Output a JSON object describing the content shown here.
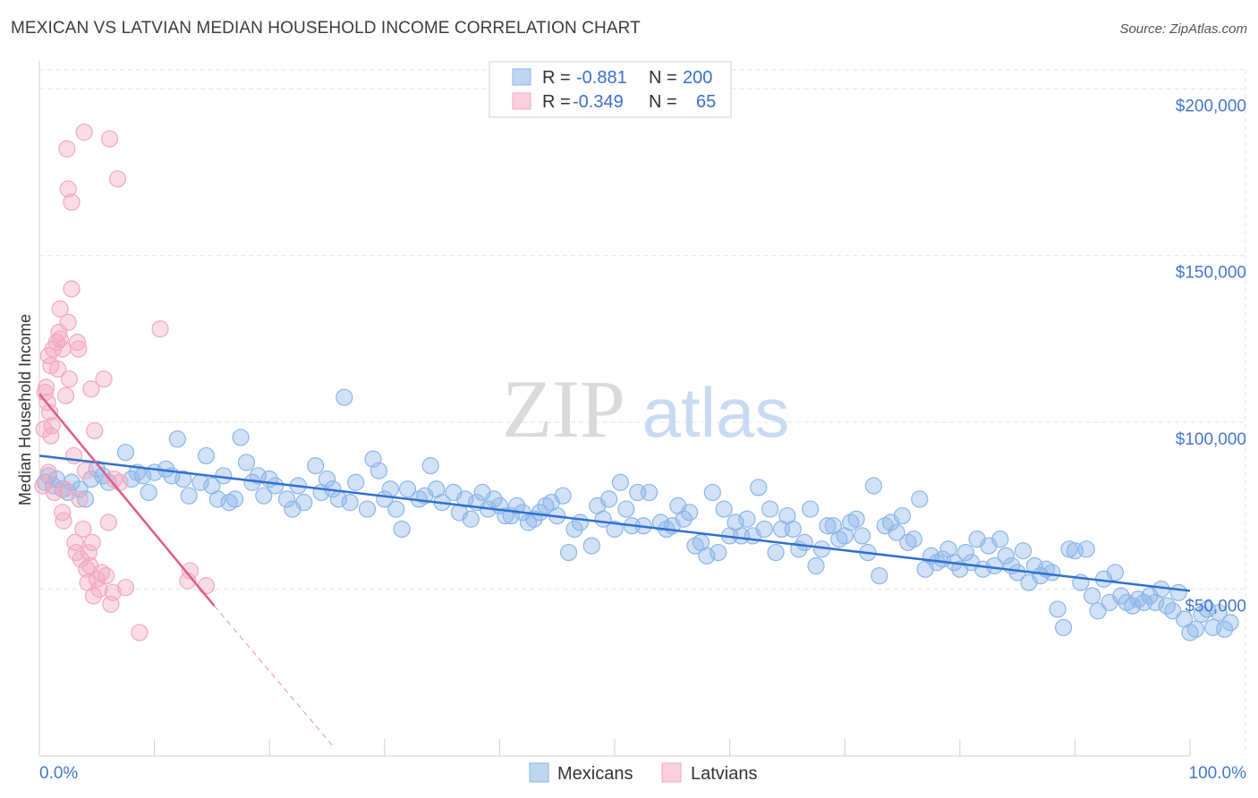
{
  "header": {
    "title": "MEXICAN VS LATVIAN MEDIAN HOUSEHOLD INCOME CORRELATION CHART",
    "source": "Source: ZipAtlas.com"
  },
  "watermark": {
    "zip": "ZIP",
    "atlas": "atlas"
  },
  "legend": {
    "rows": [
      {
        "r_label": "R =",
        "r_value": "-0.881",
        "n_label": "N =",
        "n_value": "200",
        "color": "#8bb5e8"
      },
      {
        "r_label": "R =",
        "r_value": "-0.349",
        "n_label": "N =",
        "n_value": "65",
        "color": "#f2a7bf"
      }
    ]
  },
  "bottom_legend": [
    "Mexicans",
    "Latvians"
  ],
  "chart_data": {
    "type": "scatter",
    "title": "MEXICAN VS LATVIAN MEDIAN HOUSEHOLD INCOME CORRELATION CHART",
    "xlabel": "",
    "ylabel": "Median Household Income",
    "xlim": [
      0,
      100
    ],
    "ylim": [
      0,
      210000
    ],
    "x_tick_labels": [
      "0.0%",
      "100.0%"
    ],
    "y_ticks": [
      50000,
      100000,
      150000,
      200000
    ],
    "y_tick_labels": [
      "$50,000",
      "$100,000",
      "$150,000",
      "$200,000"
    ],
    "grid": true,
    "legend_position": "top-center",
    "series": [
      {
        "name": "Mexicans",
        "color": "#8bb5e8",
        "line_color": "#2f6fd1",
        "r": -0.881,
        "n": 200,
        "trend": {
          "x": [
            0,
            100
          ],
          "y": [
            90000,
            49500
          ]
        },
        "points": [
          [
            0.5,
            82000
          ],
          [
            0.8,
            84000
          ],
          [
            1.2,
            81000
          ],
          [
            1.5,
            83000
          ],
          [
            2.0,
            80000
          ],
          [
            2.5,
            79000
          ],
          [
            2.8,
            82000
          ],
          [
            3.5,
            80000
          ],
          [
            4.0,
            77000
          ],
          [
            4.5,
            83000
          ],
          [
            5.0,
            86000
          ],
          [
            5.5,
            84000
          ],
          [
            6.0,
            82000
          ],
          [
            7.5,
            91000
          ],
          [
            8.0,
            83000
          ],
          [
            8.5,
            85000
          ],
          [
            9.0,
            84000
          ],
          [
            9.5,
            79000
          ],
          [
            10.0,
            85000
          ],
          [
            11.0,
            86000
          ],
          [
            11.5,
            84000
          ],
          [
            12.0,
            95000
          ],
          [
            12.5,
            83000
          ],
          [
            13.0,
            78000
          ],
          [
            14.0,
            82000
          ],
          [
            14.5,
            90000
          ],
          [
            15.0,
            81000
          ],
          [
            15.5,
            77000
          ],
          [
            16.0,
            84000
          ],
          [
            16.5,
            76000
          ],
          [
            17.0,
            77000
          ],
          [
            17.5,
            95500
          ],
          [
            18.0,
            88000
          ],
          [
            18.5,
            82000
          ],
          [
            19.0,
            84000
          ],
          [
            19.5,
            78000
          ],
          [
            20.0,
            83000
          ],
          [
            20.5,
            81000
          ],
          [
            21.5,
            77000
          ],
          [
            22.0,
            74000
          ],
          [
            22.5,
            81000
          ],
          [
            23.0,
            76000
          ],
          [
            24.0,
            87000
          ],
          [
            24.5,
            79000
          ],
          [
            25.0,
            83000
          ],
          [
            25.5,
            80000
          ],
          [
            26.0,
            77000
          ],
          [
            26.5,
            107500
          ],
          [
            27.0,
            76000
          ],
          [
            27.5,
            82000
          ],
          [
            28.5,
            74000
          ],
          [
            29.0,
            89000
          ],
          [
            29.5,
            85500
          ],
          [
            30.0,
            77000
          ],
          [
            30.5,
            80000
          ],
          [
            31.0,
            74000
          ],
          [
            31.5,
            68000
          ],
          [
            32.0,
            80000
          ],
          [
            33.0,
            77000
          ],
          [
            33.5,
            78000
          ],
          [
            34.0,
            87000
          ],
          [
            34.5,
            80000
          ],
          [
            35.0,
            76000
          ],
          [
            36.0,
            79000
          ],
          [
            36.5,
            73000
          ],
          [
            37.0,
            77000
          ],
          [
            37.5,
            71000
          ],
          [
            38.0,
            76000
          ],
          [
            38.5,
            79000
          ],
          [
            39.0,
            74000
          ],
          [
            39.5,
            77000
          ],
          [
            40.0,
            75000
          ],
          [
            40.5,
            72000
          ],
          [
            41.0,
            72000
          ],
          [
            41.5,
            75000
          ],
          [
            42.0,
            73000
          ],
          [
            42.5,
            70000
          ],
          [
            43.0,
            71000
          ],
          [
            43.5,
            73000
          ],
          [
            44.0,
            75000
          ],
          [
            44.5,
            76000
          ],
          [
            45.0,
            72000
          ],
          [
            45.5,
            78000
          ],
          [
            46.0,
            61000
          ],
          [
            46.5,
            68000
          ],
          [
            47.0,
            70000
          ],
          [
            48.0,
            63000
          ],
          [
            48.5,
            75000
          ],
          [
            49.0,
            71000
          ],
          [
            49.5,
            77000
          ],
          [
            50.0,
            68000
          ],
          [
            50.5,
            82000
          ],
          [
            51.0,
            74000
          ],
          [
            51.5,
            69000
          ],
          [
            52.0,
            79000
          ],
          [
            52.5,
            69000
          ],
          [
            53.0,
            79000
          ],
          [
            54.0,
            70000
          ],
          [
            54.5,
            68000
          ],
          [
            55.0,
            69000
          ],
          [
            55.5,
            75000
          ],
          [
            56.0,
            71000
          ],
          [
            56.5,
            73000
          ],
          [
            57.0,
            63000
          ],
          [
            57.5,
            64000
          ],
          [
            58.0,
            60000
          ],
          [
            58.5,
            79000
          ],
          [
            59.0,
            61000
          ],
          [
            59.5,
            74000
          ],
          [
            60.0,
            66000
          ],
          [
            60.5,
            70000
          ],
          [
            61.0,
            66000
          ],
          [
            61.5,
            71000
          ],
          [
            62.0,
            66000
          ],
          [
            62.5,
            80500
          ],
          [
            63.0,
            68000
          ],
          [
            63.5,
            74000
          ],
          [
            64.0,
            61000
          ],
          [
            64.5,
            68000
          ],
          [
            65.0,
            72000
          ],
          [
            65.5,
            68000
          ],
          [
            66.0,
            62000
          ],
          [
            66.5,
            64000
          ],
          [
            67.0,
            74000
          ],
          [
            67.5,
            57000
          ],
          [
            68.0,
            62000
          ],
          [
            68.5,
            69000
          ],
          [
            69.0,
            69000
          ],
          [
            69.5,
            65000
          ],
          [
            70.0,
            66000
          ],
          [
            70.5,
            70000
          ],
          [
            71.0,
            71000
          ],
          [
            71.5,
            66000
          ],
          [
            72.0,
            61000
          ],
          [
            72.5,
            81000
          ],
          [
            73.0,
            54000
          ],
          [
            73.5,
            69000
          ],
          [
            74.0,
            70000
          ],
          [
            74.5,
            67000
          ],
          [
            75.0,
            72000
          ],
          [
            75.5,
            64000
          ],
          [
            76.0,
            65000
          ],
          [
            76.5,
            77000
          ],
          [
            77.0,
            56000
          ],
          [
            77.5,
            60000
          ],
          [
            78.0,
            58000
          ],
          [
            78.5,
            59000
          ],
          [
            79.0,
            62000
          ],
          [
            79.5,
            58000
          ],
          [
            80.0,
            56000
          ],
          [
            80.5,
            61000
          ],
          [
            81.0,
            58000
          ],
          [
            81.5,
            65000
          ],
          [
            82.0,
            56000
          ],
          [
            82.5,
            63000
          ],
          [
            83.0,
            57000
          ],
          [
            83.5,
            65000
          ],
          [
            84.0,
            60000
          ],
          [
            84.5,
            57000
          ],
          [
            85.0,
            55000
          ],
          [
            85.5,
            61500
          ],
          [
            86.0,
            52000
          ],
          [
            86.5,
            57000
          ],
          [
            87.0,
            54000
          ],
          [
            87.5,
            56000
          ],
          [
            88.0,
            55000
          ],
          [
            88.5,
            44000
          ],
          [
            89.0,
            38500
          ],
          [
            89.5,
            62000
          ],
          [
            90.0,
            61500
          ],
          [
            90.5,
            52000
          ],
          [
            91.0,
            62000
          ],
          [
            91.5,
            48000
          ],
          [
            92.0,
            43500
          ],
          [
            92.5,
            53000
          ],
          [
            93.0,
            46000
          ],
          [
            93.5,
            55000
          ],
          [
            94.0,
            48000
          ],
          [
            94.5,
            46000
          ],
          [
            95.0,
            45000
          ],
          [
            95.5,
            47000
          ],
          [
            96.0,
            46000
          ],
          [
            96.5,
            48000
          ],
          [
            97.0,
            46000
          ],
          [
            97.5,
            50000
          ],
          [
            98.0,
            45000
          ],
          [
            98.5,
            43500
          ],
          [
            99.0,
            49000
          ],
          [
            99.5,
            41000
          ],
          [
            100.0,
            37000
          ],
          [
            100.5,
            38000
          ],
          [
            101.0,
            42500
          ],
          [
            101.5,
            44000
          ],
          [
            102.0,
            38500
          ],
          [
            102.5,
            43000
          ],
          [
            103.0,
            38000
          ],
          [
            103.5,
            40000
          ]
        ]
      },
      {
        "name": "Latvians",
        "color": "#f2a7bf",
        "line_color": "#e05a8a",
        "r": -0.349,
        "n": 65,
        "trend": {
          "x": [
            0,
            15.2
          ],
          "y": [
            108500,
            45000
          ]
        },
        "trend_dashed": {
          "x": [
            15.2,
            25.5
          ],
          "y": [
            45000,
            3000
          ]
        },
        "points": [
          [
            0.3,
            81000
          ],
          [
            0.4,
            98000
          ],
          [
            0.5,
            109000
          ],
          [
            0.6,
            110500
          ],
          [
            0.7,
            106000
          ],
          [
            0.8,
            120000
          ],
          [
            0.8,
            85000
          ],
          [
            0.9,
            103000
          ],
          [
            1.0,
            117000
          ],
          [
            1.0,
            96000
          ],
          [
            1.1,
            99000
          ],
          [
            1.2,
            122000
          ],
          [
            1.3,
            79000
          ],
          [
            1.5,
            124000
          ],
          [
            1.6,
            116000
          ],
          [
            1.7,
            127000
          ],
          [
            1.8,
            134000
          ],
          [
            1.8,
            125000
          ],
          [
            2.0,
            122000
          ],
          [
            2.0,
            73000
          ],
          [
            2.1,
            70500
          ],
          [
            2.2,
            80000
          ],
          [
            2.3,
            108000
          ],
          [
            2.4,
            182000
          ],
          [
            2.5,
            170000
          ],
          [
            2.5,
            130000
          ],
          [
            2.6,
            113000
          ],
          [
            2.8,
            166000
          ],
          [
            2.8,
            140000
          ],
          [
            3.0,
            90000
          ],
          [
            3.1,
            64000
          ],
          [
            3.2,
            61000
          ],
          [
            3.3,
            124000
          ],
          [
            3.4,
            122000
          ],
          [
            3.5,
            77000
          ],
          [
            3.6,
            59000
          ],
          [
            3.8,
            68000
          ],
          [
            3.9,
            187000
          ],
          [
            4.0,
            85500
          ],
          [
            4.1,
            56000
          ],
          [
            4.2,
            52000
          ],
          [
            4.3,
            61000
          ],
          [
            4.4,
            57000
          ],
          [
            4.5,
            110000
          ],
          [
            4.6,
            64000
          ],
          [
            4.7,
            48000
          ],
          [
            4.8,
            97500
          ],
          [
            5.0,
            53000
          ],
          [
            5.2,
            50000
          ],
          [
            5.4,
            55000
          ],
          [
            5.6,
            113000
          ],
          [
            5.8,
            54000
          ],
          [
            6.0,
            70000
          ],
          [
            6.1,
            185000
          ],
          [
            6.2,
            45500
          ],
          [
            6.4,
            49000
          ],
          [
            6.5,
            83000
          ],
          [
            6.8,
            173000
          ],
          [
            7.0,
            82000
          ],
          [
            7.5,
            50500
          ],
          [
            8.7,
            37000
          ],
          [
            10.5,
            128000
          ],
          [
            12.9,
            52500
          ],
          [
            13.1,
            55500
          ],
          [
            14.5,
            51000
          ]
        ]
      }
    ]
  }
}
